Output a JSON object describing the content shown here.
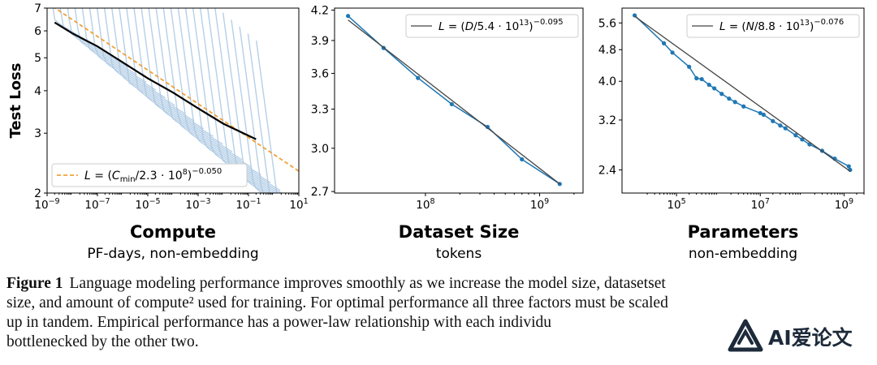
{
  "chart_data": [
    {
      "type": "line",
      "ylabel": "Test Loss",
      "xlabel": "Compute",
      "subtitle": "PF-days, non-embedding",
      "xscale": "log",
      "yscale": "log",
      "xlim": [
        1e-09,
        10
      ],
      "ylim": [
        2,
        7
      ],
      "x_ticks": [
        {
          "v": 1e-09,
          "e": "−9"
        },
        {
          "v": 1e-07,
          "e": "−7"
        },
        {
          "v": 1e-05,
          "e": "−5"
        },
        {
          "v": 0.001,
          "e": "−3"
        },
        {
          "v": 0.1,
          "e": "−1"
        },
        {
          "v": 10,
          "e": "1"
        }
      ],
      "y_ticks": [
        2,
        3,
        4,
        5,
        6,
        7
      ],
      "legend": {
        "position": "bottom-left",
        "label": "L = (C_min/2.3 · 10^8)^−0.050"
      },
      "series": [
        {
          "name": "L = (C_min/2.3 · 10^8)^−0.050",
          "style": "dashed",
          "color": "#f0a23a",
          "x": [
            1e-09,
            10
          ],
          "y": [
            7.26,
            2.32
          ]
        },
        {
          "style": "solid",
          "color": "#000000",
          "x": [
            2e-09,
            1e-08,
            1e-07,
            1e-06,
            1e-05,
            0.0001,
            0.001,
            0.01,
            0.1,
            0.2
          ],
          "y": [
            6.35,
            5.9,
            5.4,
            4.85,
            4.35,
            3.95,
            3.55,
            3.2,
            2.95,
            2.88
          ]
        }
      ],
      "light_curves_color": "#a9c7e2"
    },
    {
      "type": "line",
      "xlabel": "Dataset Size",
      "subtitle": "tokens",
      "xscale": "log",
      "yscale": "log",
      "xlim": [
        16000000.0,
        2400000000.0
      ],
      "ylim": [
        2.69,
        4.22
      ],
      "x_ticks": [
        {
          "v": 100000000.0,
          "e": "8"
        },
        {
          "v": 1000000000.0,
          "e": "9"
        }
      ],
      "y_ticks": [
        2.7,
        3.0,
        3.3,
        3.6,
        3.9,
        4.2
      ],
      "legend": {
        "position": "top-right",
        "label": "L = (D/5.4 · 10^13)^−0.095"
      },
      "series": [
        {
          "style": "markers-line",
          "color": "#1f77b4",
          "x": [
            21000000.0,
            43000000.0,
            86000000.0,
            170000000.0,
            350000000.0,
            700000000.0,
            1500000000.0
          ],
          "y": [
            4.14,
            3.83,
            3.56,
            3.34,
            3.16,
            2.92,
            2.75
          ]
        },
        {
          "name": "L = (D/5.4 · 10^13)^−0.095",
          "style": "fit",
          "color": "#444444",
          "x": [
            21000000.0,
            1500000000.0
          ],
          "y": [
            4.1,
            2.75
          ]
        }
      ]
    },
    {
      "type": "line",
      "xlabel": "Parameters",
      "subtitle": "non-embedding",
      "xscale": "log",
      "yscale": "log",
      "xlim": [
        5000.0,
        3000000000.0
      ],
      "ylim": [
        2.1,
        6.1
      ],
      "x_ticks": [
        {
          "v": 100000.0,
          "e": "5"
        },
        {
          "v": 10000000.0,
          "e": "7"
        },
        {
          "v": 1000000000.0,
          "e": "9"
        }
      ],
      "y_ticks": [
        2.4,
        3.2,
        4.0,
        4.8,
        5.6
      ],
      "legend": {
        "position": "top-right",
        "label": "L = (N/8.8 · 10^13)^−0.076"
      },
      "series": [
        {
          "style": "markers-line",
          "color": "#1f77b4",
          "x": [
            10000.0,
            50000.0,
            80000.0,
            200000.0,
            300000.0,
            400000.0,
            600000.0,
            800000.0,
            1200000.0,
            1800000.0,
            2500000.0,
            4000000.0,
            10000000.0,
            12000000.0,
            20000000.0,
            30000000.0,
            40000000.0,
            70000000.0,
            100000000.0,
            150000000.0,
            300000000.0,
            600000000.0,
            1300000000.0,
            1400000000.0
          ],
          "y": [
            5.85,
            4.98,
            4.72,
            4.35,
            4.07,
            4.05,
            3.92,
            3.84,
            3.72,
            3.62,
            3.55,
            3.46,
            3.33,
            3.3,
            3.18,
            3.1,
            3.05,
            2.93,
            2.86,
            2.78,
            2.68,
            2.56,
            2.45,
            2.4
          ]
        },
        {
          "name": "L = (N/8.8 · 10^13)^−0.076",
          "style": "fit",
          "color": "#444444",
          "x": [
            10000.0,
            1400000000.0
          ],
          "y": [
            5.82,
            2.38
          ]
        }
      ]
    }
  ],
  "caption": {
    "label": "Figure 1",
    "lines": [
      "Language modeling performance improves smoothly as we increase the model size, datasetset",
      "size, and amount of compute² used for training. For optimal performance all three factors must be scaled",
      "up in tandem. Empirical performance has a power-law relationship with each individu",
      "bottlenecked by the other two."
    ]
  },
  "watermark": {
    "text": "AI爱论文"
  }
}
